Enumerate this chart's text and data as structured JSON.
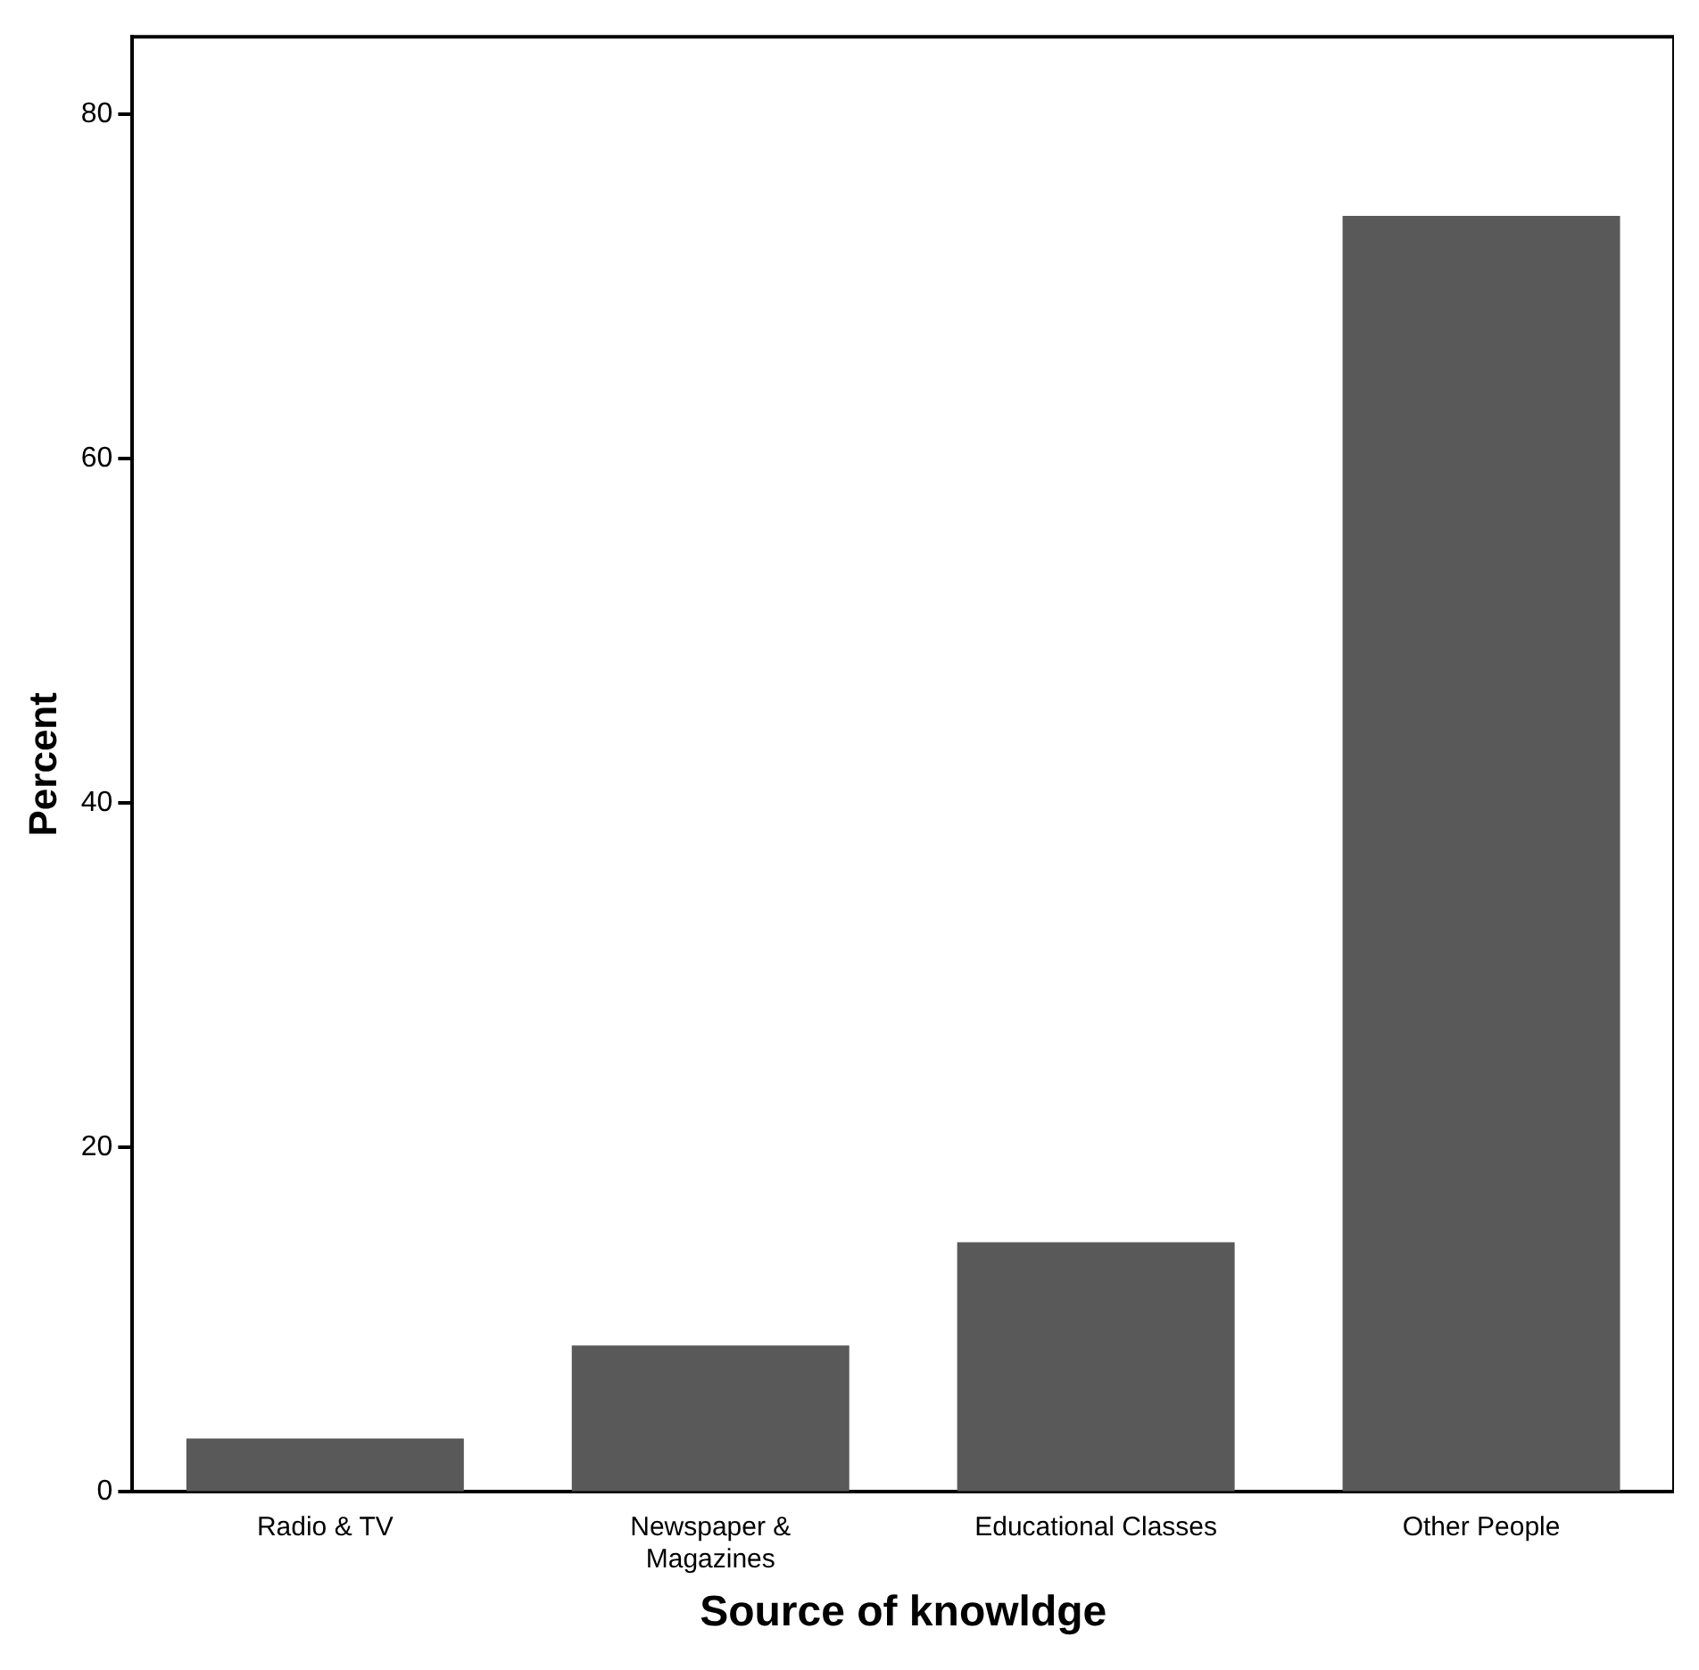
{
  "chart_data": {
    "type": "bar",
    "xlabel": "Source of knowldge",
    "ylabel": "Percent",
    "categories": [
      "Radio & TV",
      "Newspaper & Magazines",
      "Educational Classes",
      "Other People"
    ],
    "values": [
      3.1,
      8.5,
      14.5,
      74.1
    ],
    "color": "#595959",
    "ylim": [
      0,
      84.5
    ],
    "yticks": [
      0,
      20,
      40,
      60,
      80
    ],
    "grid": false,
    "legend": false
  }
}
